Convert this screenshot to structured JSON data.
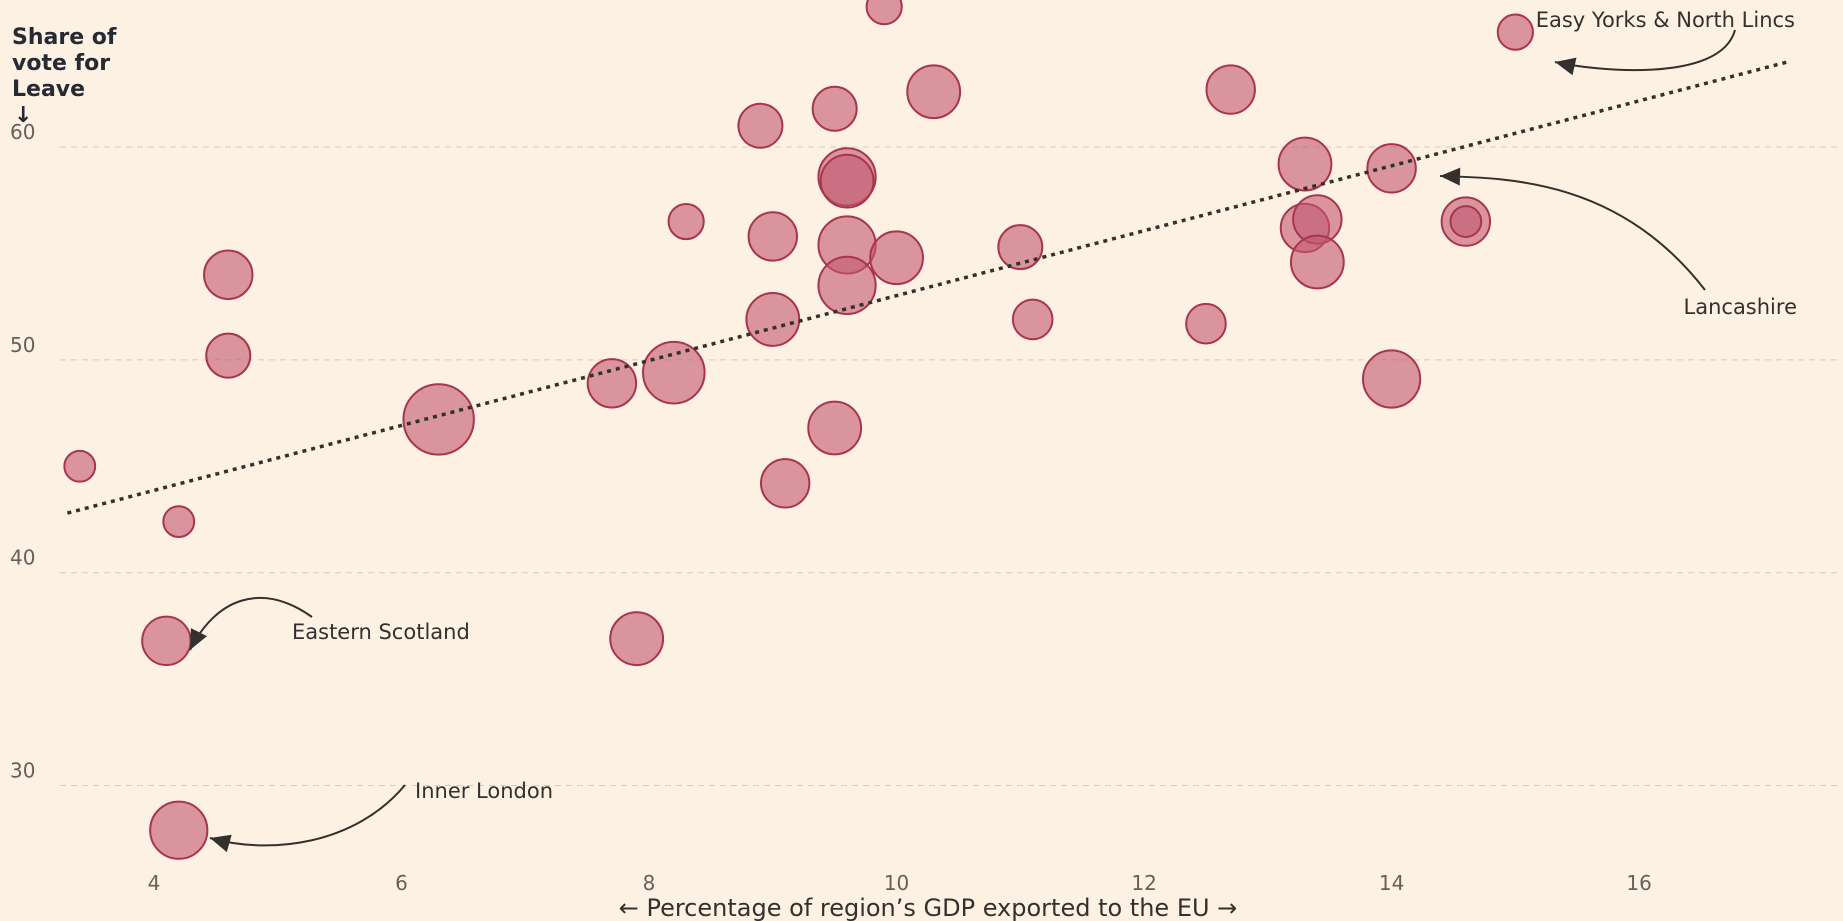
{
  "chart_data": {
    "type": "scatter",
    "title": "",
    "ylabel_lines": [
      "Share of",
      "vote for",
      "Leave",
      "↓"
    ],
    "xlabel": "← Percentage of region’s GDP exported to the EU →",
    "xlim": [
      3.2,
      17.3
    ],
    "ylim": [
      26.5,
      65.5
    ],
    "x_ticks": [
      4,
      6,
      8,
      10,
      12,
      14,
      16
    ],
    "y_ticks": [
      30,
      40,
      50,
      60
    ],
    "grid": "horizontal",
    "colors": {
      "point_fill": "#c2576f",
      "point_stroke": "#a8354f",
      "trend": "#33302e"
    },
    "trendline": {
      "x": [
        3.3,
        17.2
      ],
      "y": [
        42.8,
        64.0
      ]
    },
    "points": [
      {
        "x": 3.4,
        "y": 45.0,
        "size": 0.7
      },
      {
        "x": 4.2,
        "y": 42.4,
        "size": 0.7
      },
      {
        "x": 4.1,
        "y": 36.8,
        "size": 1.1
      },
      {
        "x": 4.2,
        "y": 27.9,
        "size": 1.3
      },
      {
        "x": 4.6,
        "y": 54.0,
        "size": 1.1
      },
      {
        "x": 4.6,
        "y": 50.2,
        "size": 1.0
      },
      {
        "x": 6.3,
        "y": 47.2,
        "size": 1.6
      },
      {
        "x": 7.7,
        "y": 48.9,
        "size": 1.1
      },
      {
        "x": 7.9,
        "y": 36.9,
        "size": 1.2
      },
      {
        "x": 8.2,
        "y": 49.4,
        "size": 1.4
      },
      {
        "x": 8.3,
        "y": 56.5,
        "size": 0.8
      },
      {
        "x": 8.9,
        "y": 61.0,
        "size": 1.0
      },
      {
        "x": 9.0,
        "y": 55.8,
        "size": 1.1
      },
      {
        "x": 9.0,
        "y": 51.9,
        "size": 1.2
      },
      {
        "x": 9.1,
        "y": 44.2,
        "size": 1.1
      },
      {
        "x": 9.5,
        "y": 61.8,
        "size": 1.0
      },
      {
        "x": 9.5,
        "y": 46.8,
        "size": 1.2
      },
      {
        "x": 9.6,
        "y": 58.6,
        "size": 1.3
      },
      {
        "x": 9.6,
        "y": 58.4,
        "size": 1.2
      },
      {
        "x": 9.6,
        "y": 55.4,
        "size": 1.3
      },
      {
        "x": 9.6,
        "y": 53.5,
        "size": 1.3
      },
      {
        "x": 9.9,
        "y": 66.6,
        "size": 0.8
      },
      {
        "x": 10.0,
        "y": 54.8,
        "size": 1.2
      },
      {
        "x": 10.3,
        "y": 62.6,
        "size": 1.2
      },
      {
        "x": 11.0,
        "y": 55.3,
        "size": 1.0
      },
      {
        "x": 11.1,
        "y": 51.9,
        "size": 0.9
      },
      {
        "x": 12.5,
        "y": 51.7,
        "size": 0.9
      },
      {
        "x": 12.7,
        "y": 62.7,
        "size": 1.1
      },
      {
        "x": 13.3,
        "y": 59.2,
        "size": 1.2
      },
      {
        "x": 13.3,
        "y": 56.2,
        "size": 1.1
      },
      {
        "x": 13.4,
        "y": 56.6,
        "size": 1.1
      },
      {
        "x": 13.4,
        "y": 54.6,
        "size": 1.2
      },
      {
        "x": 14.0,
        "y": 59.0,
        "size": 1.1
      },
      {
        "x": 14.0,
        "y": 49.1,
        "size": 1.3
      },
      {
        "x": 14.6,
        "y": 56.5,
        "size": 1.1
      },
      {
        "x": 14.6,
        "y": 56.5,
        "size": 0.7
      },
      {
        "x": 15.0,
        "y": 65.4,
        "size": 0.8
      }
    ],
    "annotations": [
      {
        "text": "Easy Yorks & North Lincs",
        "target": [
          15.0,
          65.4
        ]
      },
      {
        "text": "Lancashire",
        "target": [
          14.0,
          59.0
        ]
      },
      {
        "text": "Eastern Scotland",
        "target": [
          4.1,
          36.8
        ]
      },
      {
        "text": "Inner London",
        "target": [
          4.2,
          27.9
        ]
      }
    ]
  }
}
